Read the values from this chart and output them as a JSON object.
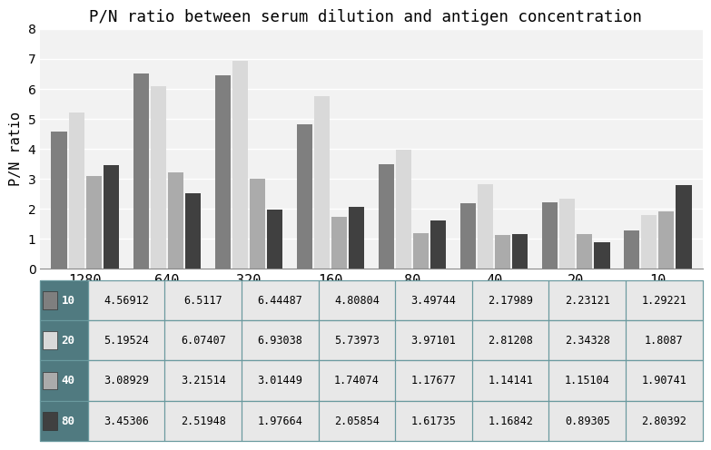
{
  "title": "P/N ratio between serum dilution and antigen concentration",
  "ylabel": "P/N ratio",
  "categories": [
    "1280",
    "640",
    "320",
    "160",
    "80",
    "40",
    "20",
    "10"
  ],
  "series": [
    {
      "label": "10",
      "color": "#7f7f7f",
      "values": [
        4.56912,
        6.5117,
        6.44487,
        4.80804,
        3.49744,
        2.17989,
        2.23121,
        1.29221
      ]
    },
    {
      "label": "20",
      "color": "#d9d9d9",
      "values": [
        5.19524,
        6.07407,
        6.93038,
        5.73973,
        3.97101,
        2.81208,
        2.34328,
        1.8087
      ]
    },
    {
      "label": "40",
      "color": "#ababab",
      "values": [
        3.08929,
        3.21514,
        3.01449,
        1.74074,
        1.17677,
        1.14141,
        1.15104,
        1.90741
      ]
    },
    {
      "label": "80",
      "color": "#404040",
      "values": [
        3.45306,
        2.51948,
        1.97664,
        2.05854,
        1.61735,
        1.16842,
        0.89305,
        2.80392
      ]
    }
  ],
  "ylim": [
    0,
    8
  ],
  "yticks": [
    0,
    1,
    2,
    3,
    4,
    5,
    6,
    7,
    8
  ],
  "table_data": [
    [
      "10",
      "4.56912",
      "6.5117",
      "6.44487",
      "4.80804",
      "3.49744",
      "2.17989",
      "2.23121",
      "1.29221"
    ],
    [
      "20",
      "5.19524",
      "6.07407",
      "6.93038",
      "5.73973",
      "3.97101",
      "2.81208",
      "2.34328",
      "1.8087"
    ],
    [
      "40",
      "3.08929",
      "3.21514",
      "3.01449",
      "1.74074",
      "1.17677",
      "1.14141",
      "1.15104",
      "1.90741"
    ],
    [
      "80",
      "3.45306",
      "2.51948",
      "1.97664",
      "2.05854",
      "1.61735",
      "1.16842",
      "0.89305",
      "2.80392"
    ]
  ],
  "chart_bg": "#f2f2f2",
  "fig_bg": "#ffffff",
  "table_bg": "#507a80",
  "table_row_bg": [
    "#e8e8e8",
    "#e8e8e8",
    "#e8e8e8",
    "#e8e8e8"
  ],
  "table_border_color": "#6a9a9f",
  "bar_gap": 0.02,
  "group_width": 0.85,
  "swatch_colors": [
    "#7f7f7f",
    "#d9d9d9",
    "#ababab",
    "#404040"
  ]
}
